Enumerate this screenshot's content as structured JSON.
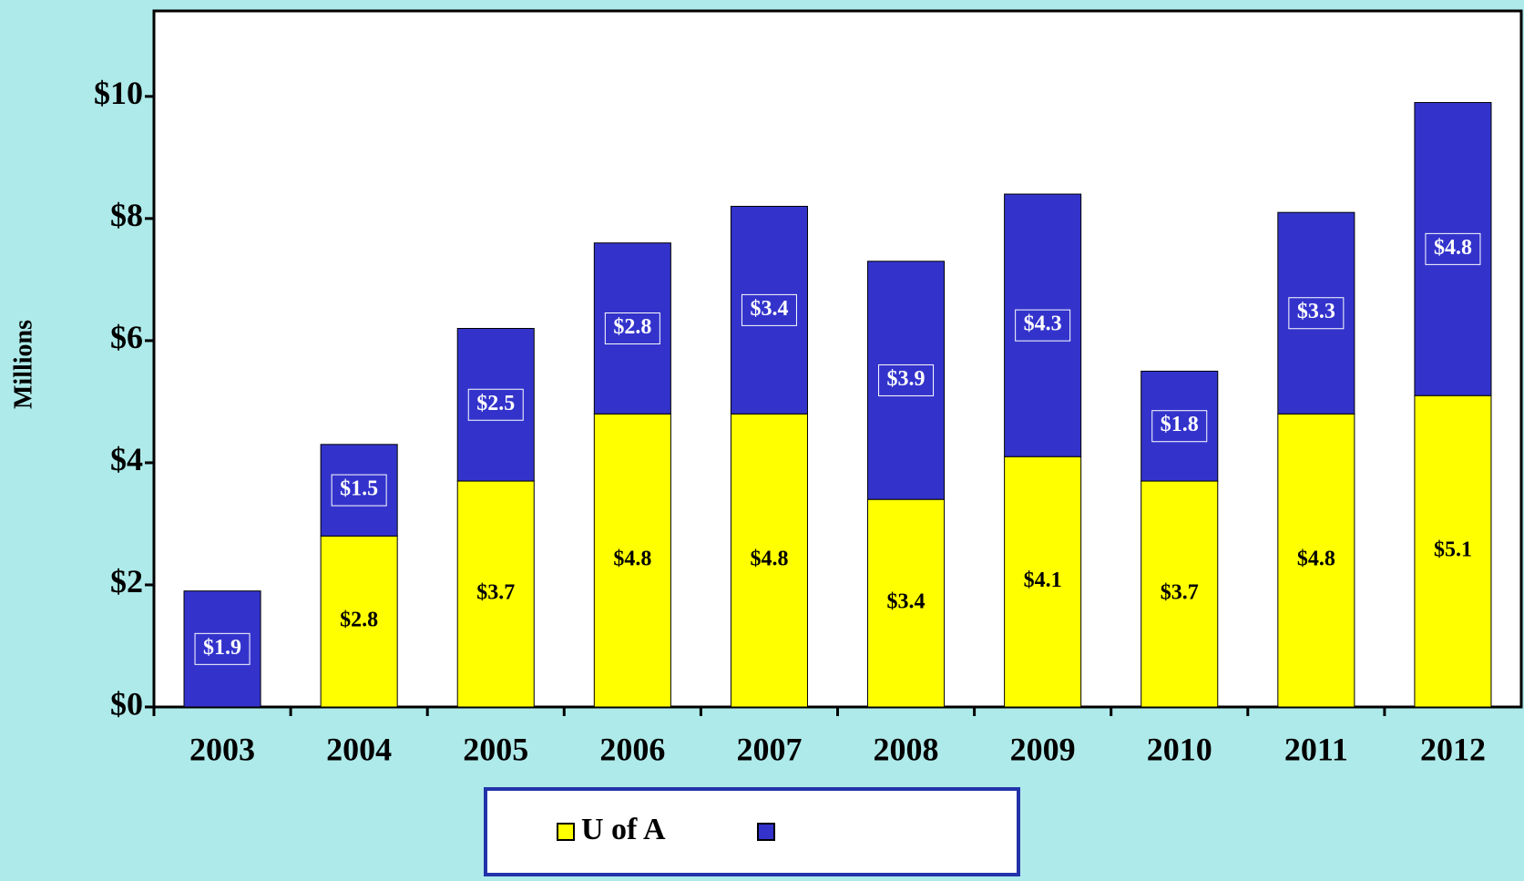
{
  "chart_data": {
    "type": "stacked-bar",
    "y_label": "Millions",
    "categories": [
      "2003",
      "2004",
      "2005",
      "2006",
      "2007",
      "2008",
      "2009",
      "2010",
      "2011",
      "2012"
    ],
    "series": [
      {
        "name": "U of A",
        "color": "#ffff00",
        "values": [
          null,
          2.8,
          3.7,
          4.8,
          4.8,
          3.4,
          4.1,
          3.7,
          4.8,
          5.1
        ],
        "value_labels": [
          null,
          "$2.8",
          "$3.7",
          "$4.8",
          "$4.8",
          "$3.4",
          "$4.1",
          "$3.7",
          "$4.8",
          "$5.1"
        ]
      },
      {
        "color": "#3333cc",
        "values": [
          1.9,
          1.5,
          2.5,
          2.8,
          3.4,
          3.9,
          4.3,
          1.8,
          3.3,
          4.8
        ],
        "value_labels": [
          "$1.9",
          "$1.5",
          "$2.5",
          "$2.8",
          "$3.4",
          "$3.9",
          "$4.3",
          "$1.8",
          "$3.3",
          "$4.8"
        ]
      }
    ],
    "ylim": [
      0,
      11.4
    ],
    "yticks": [
      {
        "value": 0,
        "label": "$0"
      },
      {
        "value": 2,
        "label": "$2"
      },
      {
        "value": 4,
        "label": "$4"
      },
      {
        "value": 6,
        "label": "$6"
      },
      {
        "value": 8,
        "label": "$8"
      },
      {
        "value": 10,
        "label": "$10"
      }
    ]
  }
}
